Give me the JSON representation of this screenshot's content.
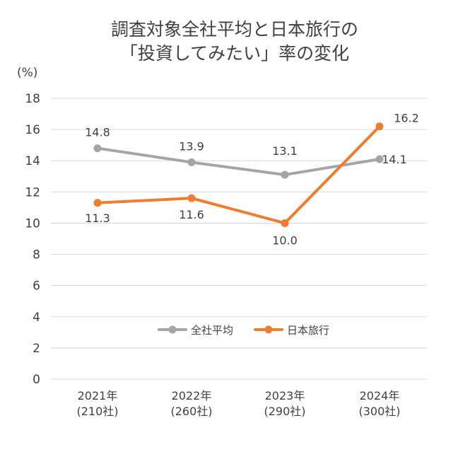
{
  "chart_data": {
    "type": "line",
    "title_lines": [
      "調査対象全社平均と日本旅行の",
      "「投資してみたい」率の変化"
    ],
    "unit_label": "(%)",
    "categories": [
      [
        "2021年",
        "(210社)"
      ],
      [
        "2022年",
        "(260社)"
      ],
      [
        "2023年",
        "(290社)"
      ],
      [
        "2024年",
        "(300社)"
      ]
    ],
    "ylim": [
      0,
      18
    ],
    "yticks": [
      0,
      2,
      4,
      6,
      8,
      10,
      12,
      14,
      16,
      18
    ],
    "ytick_labels": [
      "0",
      "2",
      "4",
      "6",
      "8",
      "10",
      "12",
      "14",
      "16",
      "18"
    ],
    "grid": true,
    "legend_position": "inside-lower-center",
    "series": [
      {
        "name": "全社平均",
        "color": "#a5a5a5",
        "values": [
          14.8,
          13.9,
          13.1,
          14.1
        ],
        "labels": [
          "14.8",
          "13.9",
          "13.1",
          "14.1"
        ]
      },
      {
        "name": "日本旅行",
        "color": "#ed7d31",
        "values": [
          11.3,
          11.6,
          10.0,
          16.2
        ],
        "labels": [
          "11.3",
          "11.6",
          "10.0",
          "16.2"
        ]
      }
    ]
  }
}
